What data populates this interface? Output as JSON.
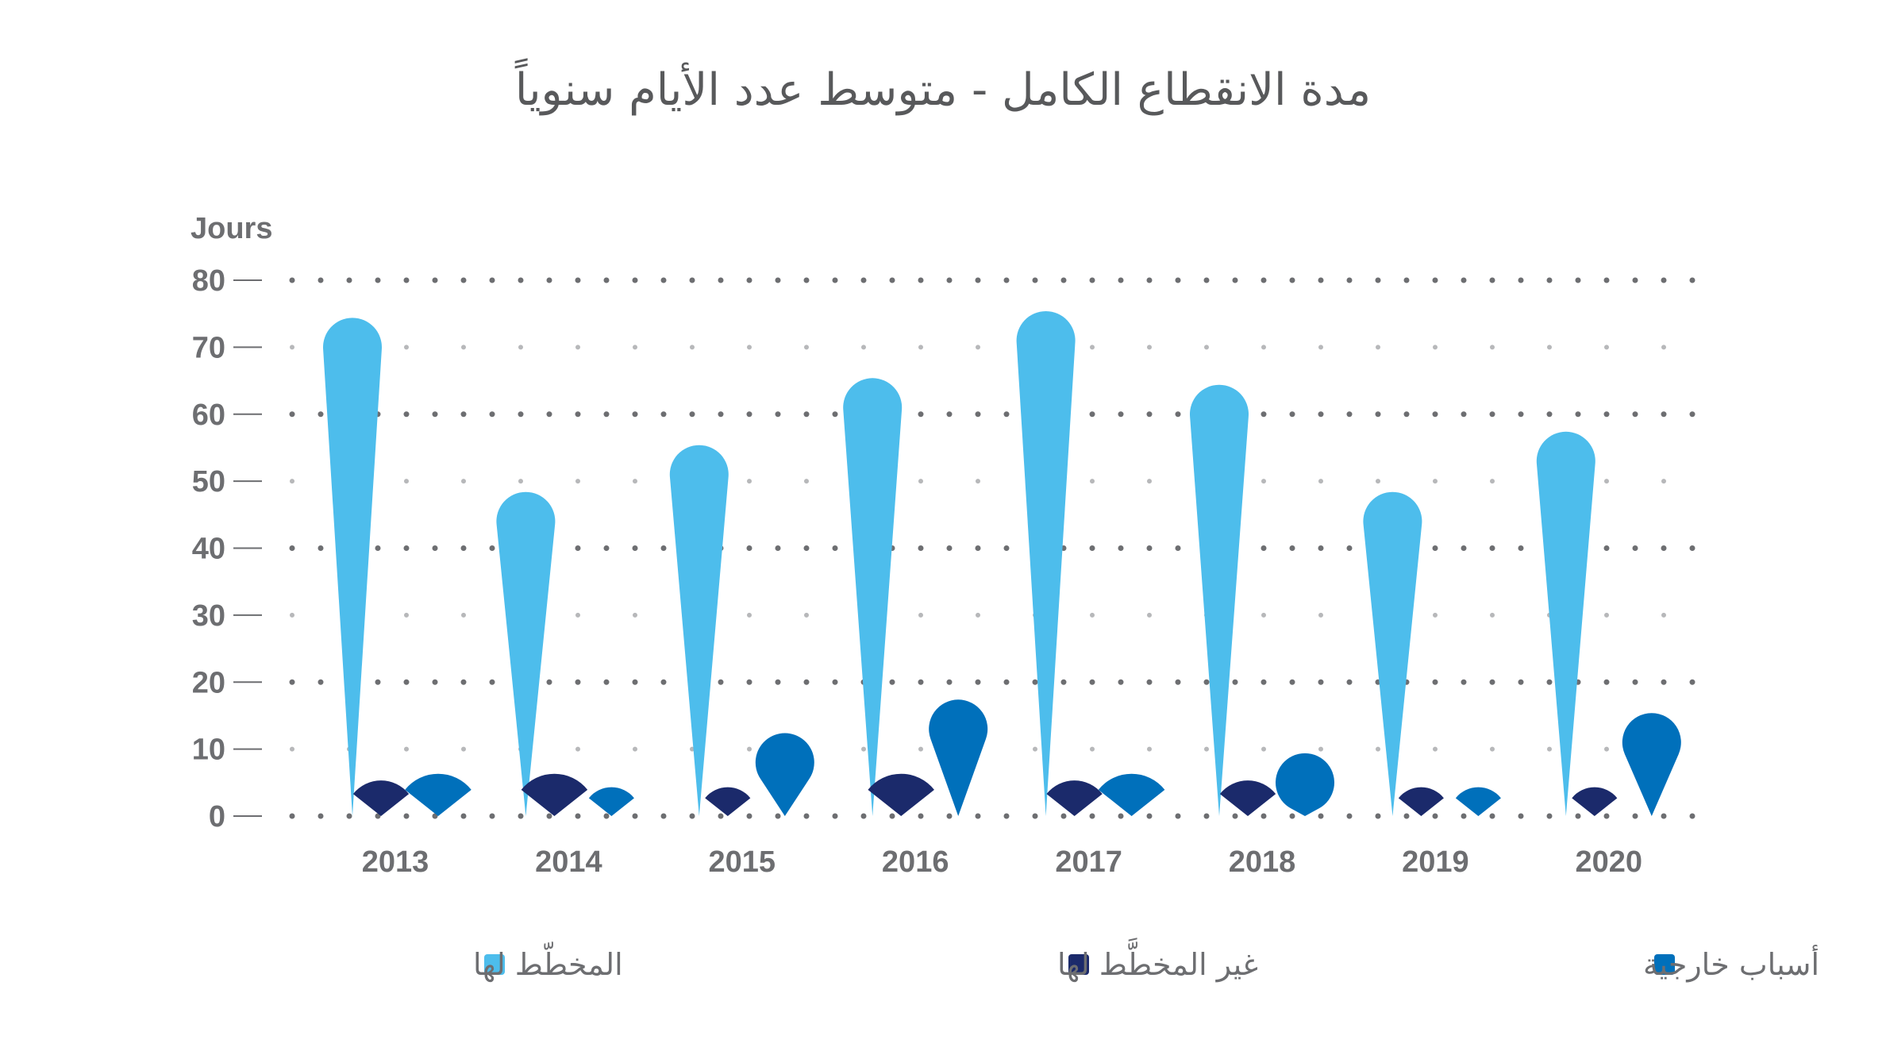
{
  "chart_data": {
    "type": "bar",
    "title": "مدة الانقطاع الكامل - متوسط عدد الأيام سنوياً",
    "ylabel": "Jours",
    "xlabel": "",
    "ylim": [
      0,
      80
    ],
    "yticks": [
      "0",
      "10",
      "20",
      "30",
      "40",
      "50",
      "60",
      "70",
      "80"
    ],
    "categories": [
      "2013",
      "2014",
      "2015",
      "2016",
      "2017",
      "2018",
      "2019",
      "2020"
    ],
    "grid": true,
    "legend_position": "bottom",
    "series": [
      {
        "name": "المخطّط لها",
        "color": "#4dbdec",
        "values": [
          70,
          44,
          51,
          61,
          71,
          60,
          44,
          53
        ]
      },
      {
        "name": "غير المخطَّط لها",
        "color": "#1b2a6b",
        "values": [
          2,
          3,
          1,
          3,
          2,
          2,
          1,
          1
        ]
      },
      {
        "name": "أسباب خارجية",
        "color": "#0070bb",
        "values": [
          3,
          1,
          8,
          13,
          3,
          5,
          1,
          11
        ]
      }
    ]
  }
}
